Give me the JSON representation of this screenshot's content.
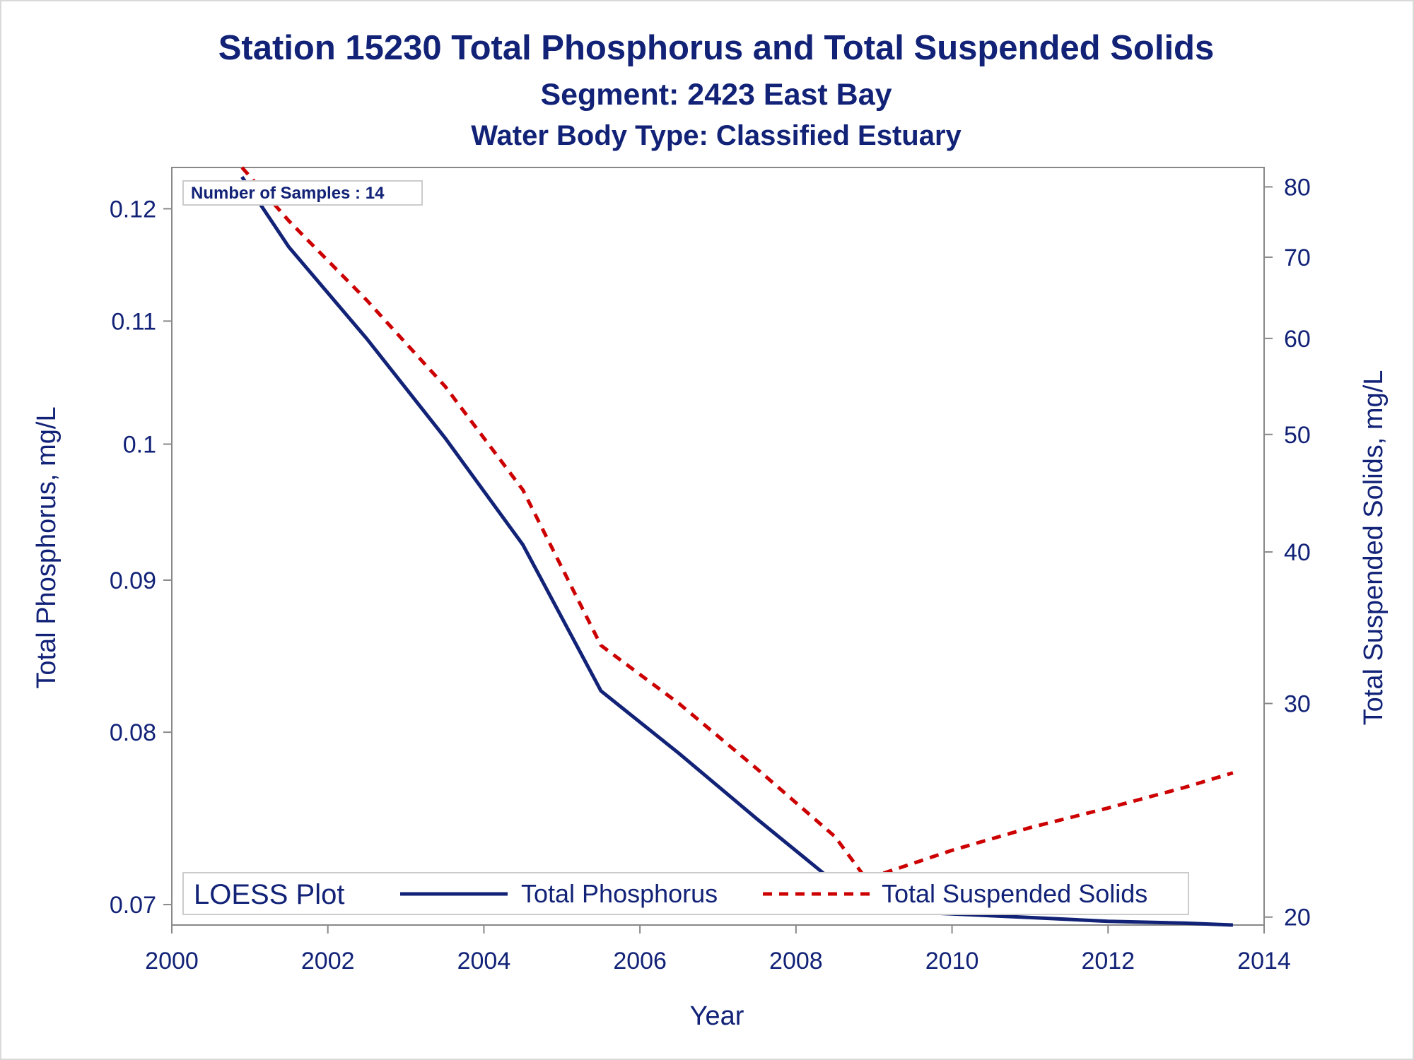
{
  "colors": {
    "text": "#112277",
    "phosphorus": "#112277",
    "tss": "#cc0000",
    "axis": "#888888"
  },
  "chart_data": {
    "type": "line",
    "title": "Station 15230  Total Phosphorus and Total Suspended Solids",
    "subtitle": "Segment: 2423  East Bay",
    "subtitle2": "Water Body Type: Classified Estuary",
    "xlabel": "Year",
    "ylabel": "Total Phosphorus, mg/L",
    "y2label": "Total Suspended Solids, mg/L",
    "xlim": [
      2000,
      2014
    ],
    "ylim": [
      0.0689,
      0.1239
    ],
    "y2lim": [
      19.7,
      83.0
    ],
    "y_scale": "log",
    "y2_scale": "log",
    "xticks": [
      "2000",
      "2002",
      "2004",
      "2006",
      "2008",
      "2010",
      "2012",
      "2014"
    ],
    "yticks": [
      "0.07",
      "0.08",
      "0.09",
      "0.1",
      "0.11",
      "0.12"
    ],
    "y2ticks": [
      "20",
      "30",
      "40",
      "50",
      "60",
      "70",
      "80"
    ],
    "annotation": "Number of Samples : 14",
    "legend": {
      "title": "LOESS Plot",
      "entries": [
        "Total Phosphorus",
        "Total Suspended Solids"
      ],
      "placement": "bottom-inside"
    },
    "series": [
      {
        "name": "Total Phosphorus",
        "axis": "left",
        "style": "solid",
        "x": [
          2000.9,
          2001.5,
          2002.5,
          2003.5,
          2004.5,
          2005.5,
          2006.5,
          2007.5,
          2008.5,
          2008.9,
          2010.0,
          2011.0,
          2012.0,
          2013.0,
          2013.6
        ],
        "y": [
          0.123,
          0.1165,
          0.1085,
          0.1005,
          0.0925,
          0.0826,
          0.0787,
          0.0748,
          0.0712,
          0.0697,
          0.0695,
          0.0693,
          0.0691,
          0.069,
          0.0689
        ]
      },
      {
        "name": "Total Suspended Solids",
        "axis": "right",
        "style": "dashed",
        "x": [
          2000.9,
          2001.5,
          2002.5,
          2003.5,
          2004.5,
          2005.5,
          2006.5,
          2007.5,
          2008.5,
          2008.9,
          2010.0,
          2011.0,
          2012.0,
          2013.0,
          2013.6
        ],
        "y": [
          83.0,
          75.0,
          64.5,
          54.8,
          45.0,
          33.5,
          30.0,
          26.5,
          23.3,
          21.5,
          22.7,
          23.7,
          24.6,
          25.6,
          26.3
        ]
      }
    ]
  }
}
